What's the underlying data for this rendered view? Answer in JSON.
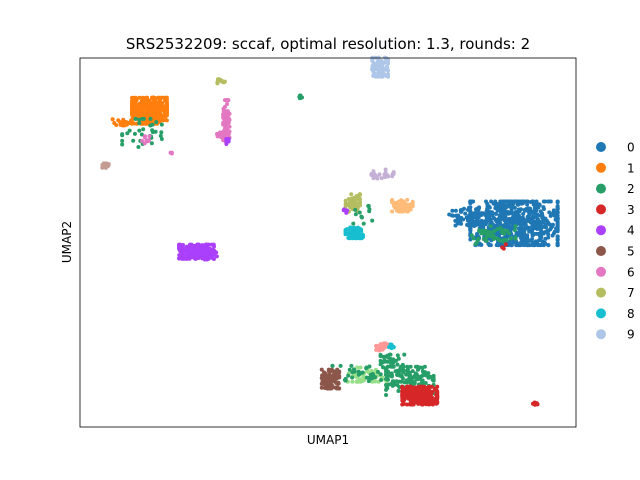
{
  "chart_data": {
    "type": "scatter",
    "title": "SRS2532209: sccaf, optimal resolution: 1.3, rounds: 2",
    "xlabel": "UMAP1",
    "ylabel": "UMAP2",
    "xticks": [],
    "yticks": [],
    "grid": false,
    "legend": "right",
    "xlim": [
      0,
      100
    ],
    "ylim": [
      0,
      100
    ],
    "series": [
      {
        "name": "0",
        "color": "#1f77b4"
      },
      {
        "name": "1",
        "color": "#ff7f0e"
      },
      {
        "name": "2",
        "color": "#279e68"
      },
      {
        "name": "3",
        "color": "#d62728"
      },
      {
        "name": "4",
        "color": "#aa40fc"
      },
      {
        "name": "5",
        "color": "#8c564b"
      },
      {
        "name": "6",
        "color": "#e377c2"
      },
      {
        "name": "7",
        "color": "#b5bd61"
      },
      {
        "name": "8",
        "color": "#17becf"
      },
      {
        "name": "9",
        "color": "#aec7e8"
      }
    ],
    "extra_colors": [
      "#ffbb78",
      "#98df8a",
      "#ff9896",
      "#c5b0d5",
      "#c49c94"
    ],
    "clusters": [
      {
        "series": 0,
        "x": 87.5,
        "y": 55.2,
        "sx": 5.5,
        "sy": 3.7,
        "n": 700
      },
      {
        "series": 0,
        "x": 78,
        "y": 57,
        "sx": 2.5,
        "sy": 1.5,
        "n": 60
      },
      {
        "series": 2,
        "x": 83,
        "y": 52,
        "sx": 3,
        "sy": 1.5,
        "n": 45
      },
      {
        "series": 3,
        "x": 85.5,
        "y": 49,
        "sx": 0.3,
        "sy": 0.5,
        "n": 4
      },
      {
        "series": 1,
        "x": 14,
        "y": 85.7,
        "sx": 2.2,
        "sy": 2.2,
        "n": 350
      },
      {
        "series": 1,
        "x": 8.5,
        "y": 82.5,
        "sx": 1.2,
        "sy": 0.7,
        "n": 25
      },
      {
        "series": 2,
        "x": 12.5,
        "y": 79.5,
        "sx": 2.5,
        "sy": 2.5,
        "n": 35
      },
      {
        "series": 6,
        "x": 13.2,
        "y": 77.5,
        "sx": 0.5,
        "sy": 0.8,
        "n": 10
      },
      {
        "series": 6,
        "x": 18.2,
        "y": 74.2,
        "sx": 0.2,
        "sy": 0.2,
        "n": 3
      },
      {
        "series": 14,
        "x": 5,
        "y": 70.8,
        "sx": 0.5,
        "sy": 0.4,
        "n": 12
      },
      {
        "series": 7,
        "x": 28.5,
        "y": 93.6,
        "sx": 0.5,
        "sy": 0.4,
        "n": 14
      },
      {
        "series": 6,
        "x": 29.5,
        "y": 83,
        "sx": 0.4,
        "sy": 3.5,
        "n": 70
      },
      {
        "series": 6,
        "x": 28.6,
        "y": 79.2,
        "sx": 0.6,
        "sy": 0.6,
        "n": 25
      },
      {
        "series": 4,
        "x": 29.7,
        "y": 77.5,
        "sx": 0.3,
        "sy": 0.5,
        "n": 8
      },
      {
        "series": 2,
        "x": 44.6,
        "y": 89.4,
        "sx": 0.3,
        "sy": 0.3,
        "n": 8
      },
      {
        "series": 9,
        "x": 60.5,
        "y": 97.5,
        "sx": 1,
        "sy": 1.6,
        "n": 80
      },
      {
        "series": 4,
        "x": 23.5,
        "y": 47.5,
        "sx": 2.2,
        "sy": 1.2,
        "n": 260
      },
      {
        "series": 4,
        "x": 26,
        "y": 46.5,
        "sx": 1,
        "sy": 0.7,
        "n": 40
      },
      {
        "series": 13,
        "x": 61,
        "y": 68.5,
        "sx": 1.4,
        "sy": 0.8,
        "n": 22
      },
      {
        "series": 7,
        "x": 55,
        "y": 60.5,
        "sx": 0.9,
        "sy": 1.6,
        "n": 55
      },
      {
        "series": 4,
        "x": 53.5,
        "y": 58.5,
        "sx": 0.3,
        "sy": 0.3,
        "n": 5
      },
      {
        "series": 2,
        "x": 57,
        "y": 57.5,
        "sx": 1.2,
        "sy": 1.5,
        "n": 12
      },
      {
        "series": 8,
        "x": 55.3,
        "y": 52.6,
        "sx": 1.1,
        "sy": 0.9,
        "n": 65
      },
      {
        "series": 10,
        "x": 65,
        "y": 60,
        "sx": 1.3,
        "sy": 1,
        "n": 65
      },
      {
        "series": 12,
        "x": 61,
        "y": 21.7,
        "sx": 0.8,
        "sy": 0.6,
        "n": 25
      },
      {
        "series": 8,
        "x": 62.8,
        "y": 22,
        "sx": 0.3,
        "sy": 0.4,
        "n": 10
      },
      {
        "series": 11,
        "x": 58,
        "y": 14.2,
        "sx": 2.5,
        "sy": 1.2,
        "n": 55
      },
      {
        "series": 2,
        "x": 56.5,
        "y": 14.5,
        "sx": 3.5,
        "sy": 1.3,
        "n": 45
      },
      {
        "series": 2,
        "x": 66.5,
        "y": 12.5,
        "sx": 3,
        "sy": 2.4,
        "n": 140
      },
      {
        "series": 2,
        "x": 63,
        "y": 18,
        "sx": 1.5,
        "sy": 1,
        "n": 30
      },
      {
        "series": 5,
        "x": 50.5,
        "y": 13,
        "sx": 1.1,
        "sy": 1.6,
        "n": 90
      },
      {
        "series": 3,
        "x": 68.5,
        "y": 8.5,
        "sx": 2.2,
        "sy": 1.5,
        "n": 280
      },
      {
        "series": 3,
        "x": 91.8,
        "y": 6.5,
        "sx": 0.3,
        "sy": 0.3,
        "n": 7
      }
    ]
  }
}
